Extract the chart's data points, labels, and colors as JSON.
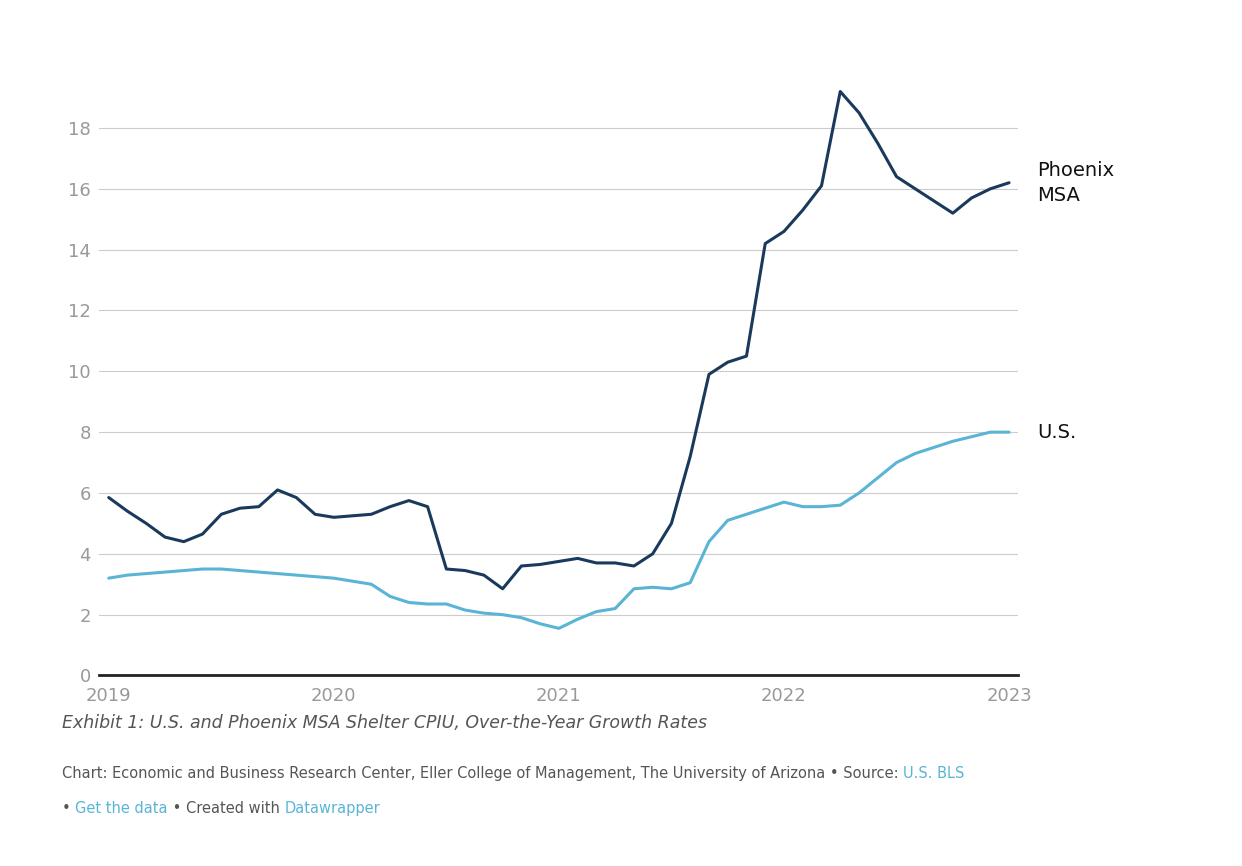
{
  "phoenix_x": [
    0,
    1,
    2,
    3,
    4,
    5,
    6,
    7,
    8,
    9,
    10,
    11,
    12,
    13,
    14,
    15,
    16,
    17,
    18,
    19,
    20,
    21,
    22,
    23,
    24,
    25,
    26,
    27,
    28,
    29,
    30,
    31,
    32,
    33,
    34,
    35,
    36,
    37,
    38,
    39,
    40,
    41,
    42,
    43,
    44,
    45,
    46,
    47,
    48
  ],
  "phoenix_y": [
    5.85,
    5.4,
    5.0,
    4.55,
    4.4,
    4.65,
    5.3,
    5.5,
    5.55,
    6.1,
    5.85,
    5.3,
    5.2,
    5.25,
    5.3,
    5.55,
    5.75,
    5.55,
    3.5,
    3.45,
    3.3,
    2.85,
    3.6,
    3.65,
    3.75,
    3.85,
    3.7,
    3.7,
    3.6,
    4.0,
    5.0,
    7.2,
    9.9,
    10.3,
    10.5,
    14.2,
    14.6,
    15.3,
    16.1,
    19.2,
    18.5,
    17.5,
    16.4,
    16.0,
    15.6,
    15.2,
    15.7,
    16.0,
    16.2
  ],
  "us_x": [
    0,
    1,
    2,
    3,
    4,
    5,
    6,
    7,
    8,
    9,
    10,
    11,
    12,
    13,
    14,
    15,
    16,
    17,
    18,
    19,
    20,
    21,
    22,
    23,
    24,
    25,
    26,
    27,
    28,
    29,
    30,
    31,
    32,
    33,
    34,
    35,
    36,
    37,
    38,
    39,
    40,
    41,
    42,
    43,
    44,
    45,
    46,
    47,
    48
  ],
  "us_y": [
    3.2,
    3.3,
    3.35,
    3.4,
    3.45,
    3.5,
    3.5,
    3.45,
    3.4,
    3.35,
    3.3,
    3.25,
    3.2,
    3.1,
    3.0,
    2.6,
    2.4,
    2.35,
    2.35,
    2.15,
    2.05,
    2.0,
    1.9,
    1.7,
    1.55,
    1.85,
    2.1,
    2.2,
    2.85,
    2.9,
    2.85,
    3.05,
    4.4,
    5.1,
    5.3,
    5.5,
    5.7,
    5.55,
    5.55,
    5.6,
    6.0,
    6.5,
    7.0,
    7.3,
    7.5,
    7.7,
    7.85,
    8.0,
    8.0
  ],
  "phoenix_color": "#1a3a5c",
  "us_color": "#5ab4d6",
  "background_color": "#ffffff",
  "grid_color": "#cccccc",
  "ylim": [
    0,
    20.5
  ],
  "yticks": [
    0,
    2,
    4,
    6,
    8,
    10,
    12,
    14,
    16,
    18
  ],
  "x_tick_positions": [
    0,
    12,
    24,
    36,
    48
  ],
  "x_tick_labels": [
    "2019",
    "2020",
    "2021",
    "2022",
    "2023"
  ],
  "phoenix_label": "Phoenix\nMSA",
  "us_label": "U.S.",
  "exhibit_text": "Exhibit 1: U.S. and Phoenix MSA Shelter CPIU, Over-the-Year Growth Rates",
  "chart_text_normal": "Chart: Economic and Business Research Center, Eller College of Management, The University of Arizona • Source: ",
  "chart_text_link1": "U.S. BLS",
  "chart_text_line2_pre": "• ",
  "chart_text_link2": "Get the data",
  "chart_text_line2_post": " • Created with ",
  "chart_text_link3": "Datawrapper",
  "link_color": "#5ab4d6",
  "text_color": "#555555",
  "axis_label_color": "#999999",
  "line_width": 2.2
}
